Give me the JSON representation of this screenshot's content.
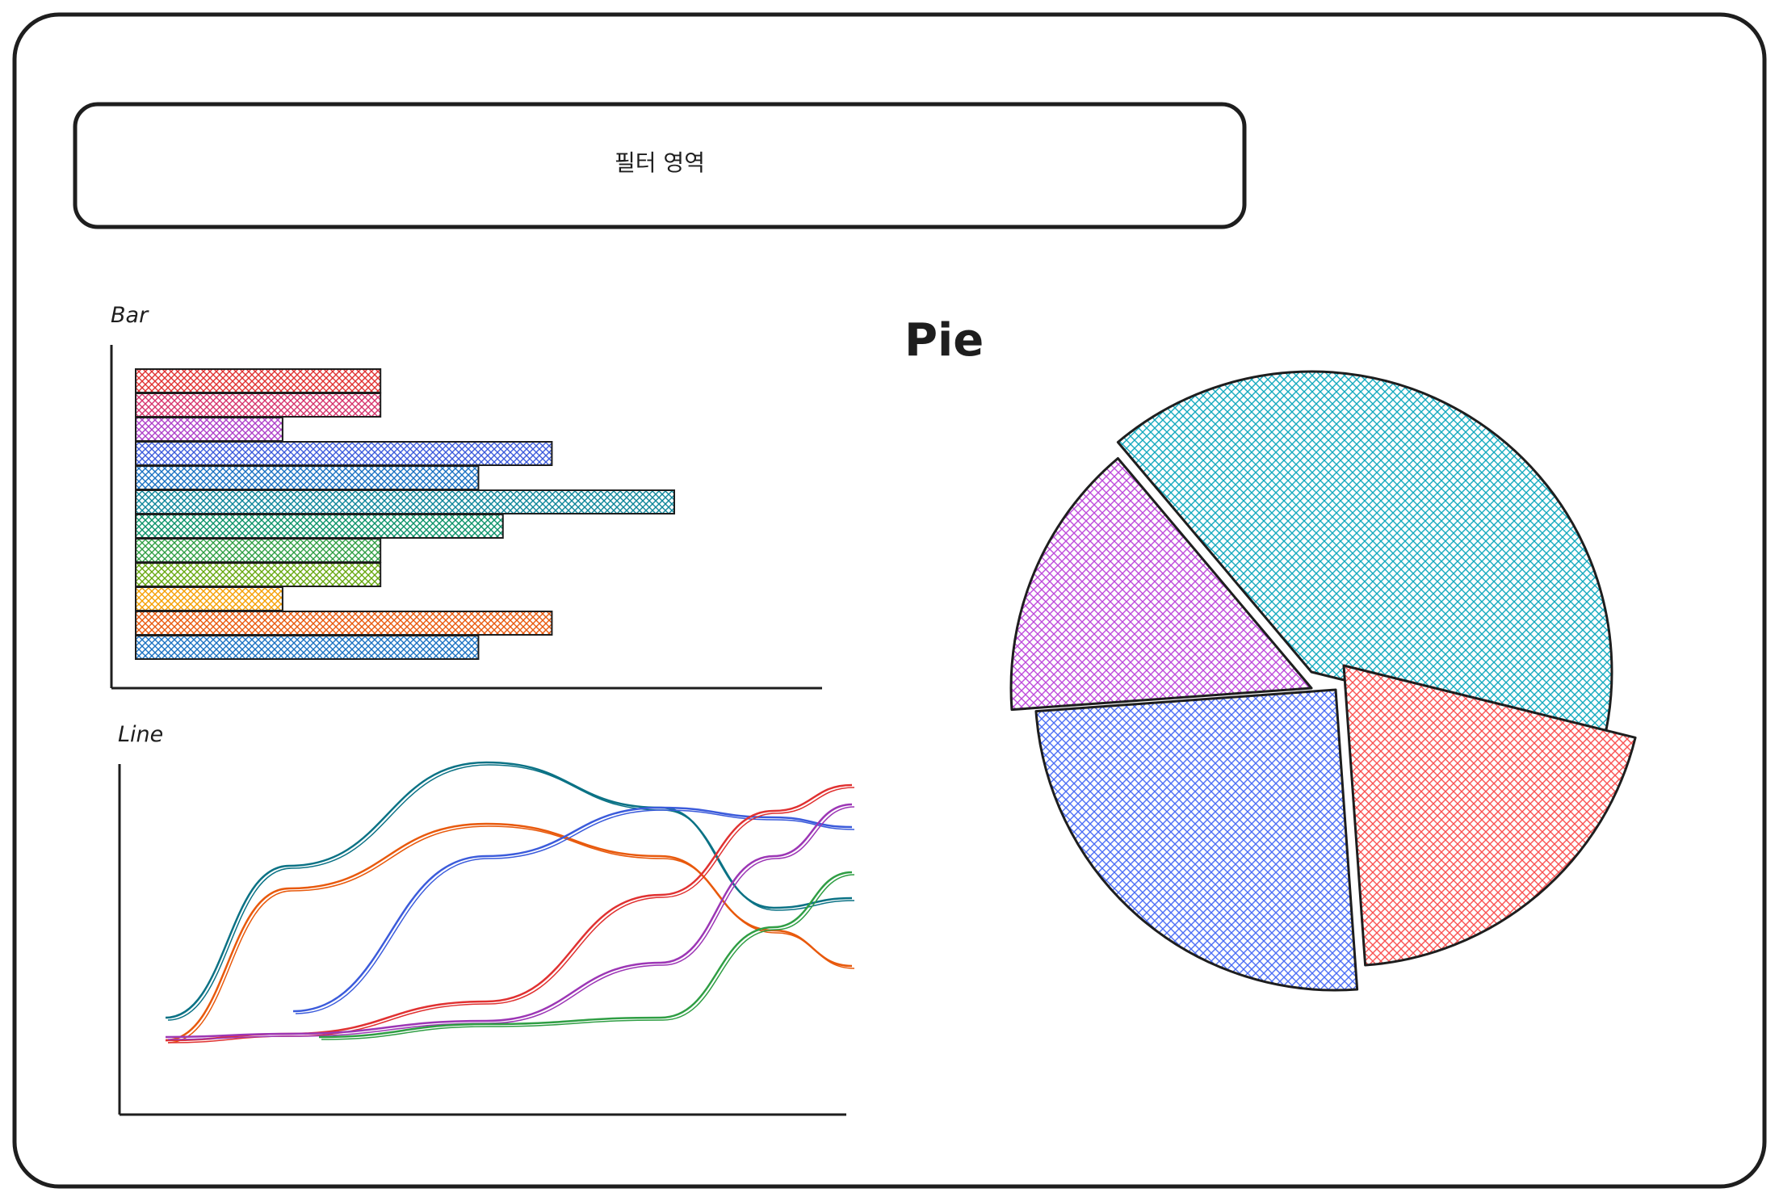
{
  "filter": {
    "label": "필터 영역"
  },
  "charts": {
    "bar": {
      "title": "Bar"
    },
    "line": {
      "title": "Line"
    },
    "pie": {
      "title": "Pie"
    }
  },
  "chart_data": [
    {
      "type": "bar",
      "title": "Bar",
      "orientation": "horizontal",
      "values": [
        5,
        5,
        3,
        8.5,
        7,
        11,
        7.5,
        5,
        5,
        3,
        8.5,
        7
      ],
      "colors": [
        "#e03131",
        "#d6336c",
        "#ae3ec9",
        "#3b5bdb",
        "#1971c2",
        "#0c8599",
        "#099268",
        "#2f9e44",
        "#66a80f",
        "#f59f00",
        "#e8590c",
        "#1971c2"
      ]
    },
    {
      "type": "line",
      "title": "Line",
      "series": [
        {
          "color": "#0b7285",
          "values": [
            0.2,
            0.67,
            0.99,
            0.85,
            0.54,
            0.57
          ]
        },
        {
          "color": "#e8590c",
          "values": [
            0.13,
            0.6,
            0.8,
            0.7,
            0.47,
            0.36
          ]
        },
        {
          "color": "#3b5bdb",
          "values": [
            null,
            0.22,
            0.7,
            0.85,
            0.82,
            0.79
          ]
        },
        {
          "color": "#e03131",
          "values": [
            0.13,
            0.15,
            0.25,
            0.58,
            0.84,
            0.92
          ]
        },
        {
          "color": "#9c36b5",
          "values": [
            0.14,
            0.15,
            0.19,
            0.37,
            0.7,
            0.86
          ]
        },
        {
          "color": "#2f9e44",
          "values": [
            null,
            0.14,
            0.18,
            0.2,
            0.48,
            0.65
          ]
        }
      ]
    },
    {
      "type": "pie",
      "title": "Pie",
      "slices": [
        {
          "color": "#15aabf",
          "share": 40
        },
        {
          "color": "#fa5252",
          "share": 20
        },
        {
          "color": "#4c6ef5",
          "share": 25
        },
        {
          "color": "#be4bdb",
          "share": 15
        }
      ]
    }
  ]
}
